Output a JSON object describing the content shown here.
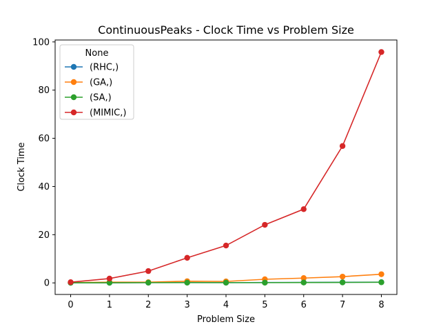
{
  "chart_data": {
    "type": "line",
    "title": "ContinuousPeaks - Clock Time vs Problem Size",
    "xlabel": "Problem Size",
    "ylabel": "Clock Time",
    "x": [
      0,
      1,
      2,
      3,
      4,
      5,
      6,
      7,
      8
    ],
    "xticks": [
      "0",
      "1",
      "2",
      "3",
      "4",
      "5",
      "6",
      "7",
      "8"
    ],
    "yticks": [
      "0",
      "20",
      "40",
      "60",
      "80",
      "100"
    ],
    "xlim": [
      -0.4,
      8.4
    ],
    "ylim": [
      -4.8,
      100.8
    ],
    "grid": false,
    "legend": {
      "title": "None",
      "placement": "upper-left"
    },
    "series": [
      {
        "name": "(RHC,)",
        "color": "#1f77b4",
        "values": [
          0.05,
          0.05,
          0.1,
          0.15,
          0.1,
          0.15,
          0.2,
          0.25,
          0.3
        ]
      },
      {
        "name": "(GA,)",
        "color": "#ff7f0e",
        "values": [
          0.1,
          0.3,
          0.3,
          0.7,
          0.6,
          1.5,
          2.0,
          2.6,
          3.6
        ]
      },
      {
        "name": "(SA,)",
        "color": "#2ca02c",
        "values": [
          0.05,
          0.05,
          0.1,
          0.1,
          0.1,
          0.1,
          0.15,
          0.2,
          0.25
        ]
      },
      {
        "name": "(MIMIC,)",
        "color": "#d62728",
        "values": [
          0.3,
          1.8,
          4.9,
          10.4,
          15.5,
          24.1,
          30.6,
          56.8,
          95.8
        ]
      }
    ]
  }
}
